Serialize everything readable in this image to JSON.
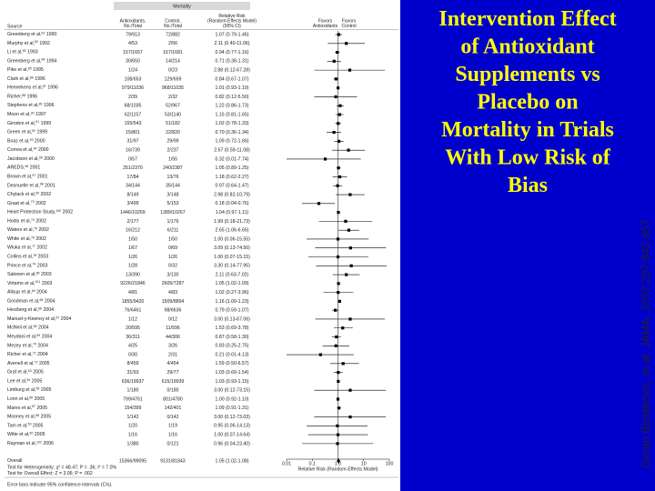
{
  "slide": {
    "title": [
      "Intervention Effect",
      "of Antioxidant",
      "Supplements vs",
      "Placebo on",
      "Mortality in Trials",
      "With Low Risk of",
      "Bias"
    ],
    "citation": "Goran Bjelakovic, et al. JAMA. 2007;297:842-857"
  },
  "forest": {
    "type": "forest",
    "panel_title": "Mortality",
    "headers": {
      "source": "Source",
      "antioxidants": [
        "Antioxidants,",
        "No./Total"
      ],
      "control": [
        "Control,",
        "No./Total"
      ],
      "rr": [
        "Relative Risk",
        "(Random-Effects Model)",
        "(95% CI)"
      ],
      "favors_left": [
        "Favors",
        "Antioxidants"
      ],
      "favors_right": [
        "Favors",
        "Control"
      ]
    },
    "rows": [
      {
        "source": "Greenberg et al,",
        "ref": "81",
        "year": "1990",
        "antioxidants": "79/913",
        "control": "72/882",
        "rr_label": "1.07 (0.79-1.46)",
        "rr": 1.07,
        "ci_low": 0.79,
        "ci_high": 1.46
      },
      {
        "source": "Murphy et al,",
        "ref": "82",
        "year": "1992",
        "antioxidants": "4/53",
        "control": "2/56",
        "rr_label": "2.11 (0.40-11.06)",
        "rr": 2.11,
        "ci_low": 0.4,
        "ci_high": 11.06
      },
      {
        "source": "Li et al,",
        "ref": "83",
        "year": "1993",
        "antioxidants": "157/1657",
        "control": "167/1681",
        "rr_label": "0.94 (0.77-1.16)",
        "rr": 0.94,
        "ci_low": 0.77,
        "ci_high": 1.16
      },
      {
        "source": "Greenberg et al,",
        "ref": "84",
        "year": "1994",
        "antioxidants": "30/650",
        "control": "14/214",
        "rr_label": "0.71 (0.38-1.31)",
        "rr": 0.71,
        "ci_low": 0.38,
        "ci_high": 1.31
      },
      {
        "source": "Pike et al,",
        "ref": "85",
        "year": "1995",
        "antioxidants": "1/24",
        "control": "0/23",
        "rr_label": "2.88 (0.12-67.28)",
        "rr": 2.88,
        "ci_low": 0.12,
        "ci_high": 67.28
      },
      {
        "source": "Clark et al,",
        "ref": "86",
        "year": "1996",
        "antioxidants": "108/653",
        "control": "129/659",
        "rr_label": "0.84 (0.67-1.07)",
        "rr": 0.84,
        "ci_low": 0.67,
        "ci_high": 1.07
      },
      {
        "source": "Hennekens et al,",
        "ref": "87",
        "year": "1996",
        "antioxidants": "979/11036",
        "control": "968/11035",
        "rr_label": "1.01 (0.93-1.10)",
        "rr": 1.01,
        "ci_low": 0.93,
        "ci_high": 1.1
      },
      {
        "source": "Richer,",
        "ref": "88",
        "year": "1996",
        "antioxidants": "2/39",
        "control": "2/32",
        "rr_label": "0.82 (0.12-5.50)",
        "rr": 0.82,
        "ci_low": 0.12,
        "ci_high": 5.5
      },
      {
        "source": "Stephens et al,",
        "ref": "89",
        "year": "1996",
        "antioxidants": "68/1035",
        "control": "52/967",
        "rr_label": "1.22 (0.86-1.73)",
        "rr": 1.22,
        "ci_low": 0.86,
        "ci_high": 1.73
      },
      {
        "source": "Moon et al,",
        "ref": "90",
        "year": "1997",
        "antioxidants": "62/1157",
        "control": "53/1140",
        "rr_label": "1.15 (0.81-1.65)",
        "rr": 1.15,
        "ci_low": 0.81,
        "ci_high": 1.65
      },
      {
        "source": "Girodon et al,",
        "ref": "91",
        "year": "1999",
        "antioxidants": "155/543",
        "control": "51/182",
        "rr_label": "1.02 (0.78-1.33)",
        "rr": 1.02,
        "ci_low": 0.78,
        "ci_high": 1.33
      },
      {
        "source": "Green et al,",
        "ref": "92",
        "year": "1999",
        "antioxidants": "15/801",
        "control": "22/820",
        "rr_label": "0.70 (0.36-1.34)",
        "rr": 0.7,
        "ci_low": 0.36,
        "ci_high": 1.34
      },
      {
        "source": "Boaz et al,",
        "ref": "93",
        "year": "2000",
        "antioxidants": "31/97",
        "control": "29/99",
        "rr_label": "1.09 (0.72-1.66)",
        "rr": 1.09,
        "ci_low": 0.72,
        "ci_high": 1.66
      },
      {
        "source": "Correa et al,",
        "ref": "94",
        "year": "2000",
        "antioxidants": "16/739",
        "control": "2/237",
        "rr_label": "2.57 (0.59-11.08)",
        "rr": 2.57,
        "ci_low": 0.59,
        "ci_high": 11.08
      },
      {
        "source": "Jacobson et al,",
        "ref": "95",
        "year": "2000",
        "antioxidants": "0/57",
        "control": "1/55",
        "rr_label": "0.32 (0.01-7.74)",
        "rr": 0.32,
        "ci_low": 0.01,
        "ci_high": 7.74
      },
      {
        "source": "AREDS,",
        "ref": "96",
        "year": "2001",
        "antioxidants": "251/2370",
        "control": "240/2387",
        "rr_label": "1.05 (0.89-1.25)",
        "rr": 1.05,
        "ci_low": 0.89,
        "ci_high": 1.25
      },
      {
        "source": "Brown et al,",
        "ref": "97",
        "year": "2001",
        "antioxidants": "17/84",
        "control": "13/76",
        "rr_label": "1.18 (0.62-2.27)",
        "rr": 1.18,
        "ci_low": 0.62,
        "ci_high": 2.27
      },
      {
        "source": "Desnuelle et al,",
        "ref": "98",
        "year": "2001",
        "antioxidants": "34/144",
        "control": "35/144",
        "rr_label": "0.97 (0.64-1.47)",
        "rr": 0.97,
        "ci_low": 0.64,
        "ci_high": 1.47
      },
      {
        "source": "Chylack et al,",
        "ref": "99",
        "year": "2002",
        "antioxidants": "8/149",
        "control": "3/148",
        "rr_label": "2.98 (0.82-10.79)",
        "rr": 2.98,
        "ci_low": 0.82,
        "ci_high": 10.79
      },
      {
        "source": "Graat et al,",
        "ref": "73",
        "year": "2002",
        "antioxidants": "3/499",
        "control": "5/153",
        "rr_label": "0.18 (0.04-0.76)",
        "rr": 0.18,
        "ci_low": 0.04,
        "ci_high": 0.76
      },
      {
        "source": "Heart Protection Study,",
        "ref": "100",
        "year": "2002",
        "antioxidants": "1446/10269",
        "control": "1389/10267",
        "rr_label": "1.04 (0.97-1.11)",
        "rr": 1.04,
        "ci_low": 0.97,
        "ci_high": 1.11
      },
      {
        "source": "Hodis et al,",
        "ref": "74",
        "year": "2002",
        "antioxidants": "2/177",
        "control": "1/176",
        "rr_label": "1.99 (0.18-21.73)",
        "rr": 1.99,
        "ci_low": 0.18,
        "ci_high": 21.73
      },
      {
        "source": "Waters et al,",
        "ref": "75",
        "year": "2002",
        "antioxidants": "16/212",
        "control": "6/211",
        "rr_label": "2.65 (1.06-6.65)",
        "rr": 2.65,
        "ci_low": 1.06,
        "ci_high": 6.65
      },
      {
        "source": "White et al,",
        "ref": "76",
        "year": "2002",
        "antioxidants": "1/50",
        "control": "1/50",
        "rr_label": "1.00 (0.06-15.55)",
        "rr": 1.0,
        "ci_low": 0.06,
        "ci_high": 15.55
      },
      {
        "source": "Wluka et al,",
        "ref": "77",
        "year": "2002",
        "antioxidants": "1/67",
        "control": "0/69",
        "rr_label": "3.09 (0.13-74.50)",
        "rr": 3.09,
        "ci_low": 0.13,
        "ci_high": 74.5
      },
      {
        "source": "Collins et al,",
        "ref": "78",
        "year": "2003",
        "antioxidants": "1/26",
        "control": "1/26",
        "rr_label": "1.00 (0.07-15.15)",
        "rr": 1.0,
        "ci_low": 0.07,
        "ci_high": 15.15
      },
      {
        "source": "Prince et al,",
        "ref": "79",
        "year": "2003",
        "antioxidants": "1/28",
        "control": "0/32",
        "rr_label": "3.30 (0.14-77.95)",
        "rr": 3.3,
        "ci_low": 0.14,
        "ci_high": 77.95
      },
      {
        "source": "Salonen et al,",
        "ref": "80",
        "year": "2003",
        "antioxidants": "13/390",
        "control": "3/130",
        "rr_label": "2.11 (0.63-7.02)",
        "rr": 2.11,
        "ci_low": 0.63,
        "ci_high": 7.02
      },
      {
        "source": "Virtamo et al,",
        "ref": "101",
        "year": "2003",
        "antioxidants": "9226/21846",
        "control": "2605/7287",
        "rr_label": "1.05 (1.02-1.09)",
        "rr": 1.05,
        "ci_low": 1.02,
        "ci_high": 1.09
      },
      {
        "source": "Allsup et al,",
        "ref": "64",
        "year": "2004",
        "antioxidants": "4/81",
        "control": "4/83",
        "rr_label": "1.02 (0.27-3.96)",
        "rr": 1.02,
        "ci_low": 0.27,
        "ci_high": 3.96
      },
      {
        "source": "Goodman et al,",
        "ref": "65",
        "year": "2004",
        "antioxidants": "1855/9420",
        "control": "1509/8894",
        "rr_label": "1.16 (1.09-1.23)",
        "rr": 1.16,
        "ci_low": 1.09,
        "ci_high": 1.23
      },
      {
        "source": "Herzberg et al,",
        "ref": "66",
        "year": "2004",
        "antioxidants": "76/6461",
        "control": "98/6636",
        "rr_label": "0.79 (0.59-1.07)",
        "rr": 0.79,
        "ci_low": 0.59,
        "ci_high": 1.07
      },
      {
        "source": "Manuel-y-Keenoy et al,",
        "ref": "67",
        "year": "2004",
        "antioxidants": "1/12",
        "control": "0/12",
        "rr_label": "3.00 (0.13-67.06)",
        "rr": 3.0,
        "ci_low": 0.13,
        "ci_high": 67.06
      },
      {
        "source": "McNeil et al,",
        "ref": "68",
        "year": "2004",
        "antioxidants": "20/595",
        "control": "11/596",
        "rr_label": "1.53 (0.69-3.78)",
        "rr": 1.53,
        "ci_low": 0.69,
        "ci_high": 3.78
      },
      {
        "source": "Meydani et al,",
        "ref": "69",
        "year": "2004",
        "antioxidants": "36/311",
        "control": "44/306",
        "rr_label": "0.87 (0.58-1.30)",
        "rr": 0.87,
        "ci_low": 0.58,
        "ci_high": 1.3
      },
      {
        "source": "Mezey et al,",
        "ref": "70",
        "year": "2004",
        "antioxidants": "4/25",
        "control": "3/26",
        "rr_label": "0.83 (0.25-2.75)",
        "rr": 0.83,
        "ci_low": 0.25,
        "ci_high": 2.75
      },
      {
        "source": "Richer et al,",
        "ref": "71",
        "year": "2004",
        "antioxidants": "0/30",
        "control": "2/31",
        "rr_label": "0.21 (0.01-4.13)",
        "rr": 0.21,
        "ci_low": 0.01,
        "ci_high": 4.13
      },
      {
        "source": "Avenell et al,",
        "ref": "72",
        "year": "2005",
        "antioxidants": "8/459",
        "control": "4/454",
        "rr_label": "1.59 (0.50-6.57)",
        "rr": 1.59,
        "ci_low": 0.5,
        "ci_high": 6.57
      },
      {
        "source": "Graf et al,",
        "ref": "63",
        "year": "2005",
        "antioxidants": "31/93",
        "control": "29/77",
        "rr_label": "1.03 (0.69-1.54)",
        "rr": 1.03,
        "ci_low": 0.69,
        "ci_high": 1.54
      },
      {
        "source": "Lee et al,",
        "ref": "54",
        "year": "2005",
        "antioxidants": "636/19937",
        "control": "615/19939",
        "rr_label": "1.03 (0.93-1.15)",
        "rr": 1.03,
        "ci_low": 0.93,
        "ci_high": 1.15
      },
      {
        "source": "Limburg et al,",
        "ref": "55",
        "year": "2005",
        "antioxidants": "1/180",
        "control": "0/180",
        "rr_label": "3.00 (0.12-73.15)",
        "rr": 3.0,
        "ci_low": 0.12,
        "ci_high": 73.15
      },
      {
        "source": "Lonn et al,",
        "ref": "56",
        "year": "2005",
        "antioxidants": "799/4761",
        "control": "801/4780",
        "rr_label": "1.00 (0.92-1.10)",
        "rr": 1.0,
        "ci_low": 0.92,
        "ci_high": 1.1
      },
      {
        "source": "Mares et al,",
        "ref": "57",
        "year": "2005",
        "antioxidants": "154/399",
        "control": "142/401",
        "rr_label": "1.09 (0.91-1.31)",
        "rr": 1.09,
        "ci_low": 0.91,
        "ci_high": 1.31
      },
      {
        "source": "Mooney et al,",
        "ref": "58",
        "year": "2005",
        "antioxidants": "1/142",
        "control": "0/142",
        "rr_label": "3.00 (0.12-73.03)",
        "rr": 3.0,
        "ci_low": 0.12,
        "ci_high": 73.03
      },
      {
        "source": "Tam et al,",
        "ref": "59",
        "year": "2005",
        "antioxidants": "1/20",
        "control": "1/19",
        "rr_label": "0.95 (0.06-14.13)",
        "rr": 0.95,
        "ci_low": 0.06,
        "ci_high": 14.13
      },
      {
        "source": "Witte et al,",
        "ref": "60",
        "year": "2005",
        "antioxidants": "1/16",
        "control": "1/16",
        "rr_label": "1.00 (0.07-14.64)",
        "rr": 1.0,
        "ci_low": 0.07,
        "ci_high": 14.64
      },
      {
        "source": "Rayman et al,",
        "ref": "102",
        "year": "2006",
        "antioxidants": "1/380",
        "control": "0/121",
        "rr_label": "0.96 (0.04-23.40)",
        "rr": 0.96,
        "ci_low": 0.04,
        "ci_high": 23.4
      }
    ],
    "overall": {
      "source": "Overall",
      "antioxidants": "15366/99095",
      "control": "9131/81843",
      "rr_label": "1.05 (1.02-1.08)",
      "rr": 1.05,
      "ci_low": 1.02,
      "ci_high": 1.08
    },
    "heterogeneity": "Test for Heterogeneity: χ² = 48.47; P = .36; I² = 7.0%",
    "overall_effect": "Test for Overall Effect: Z = 3.06; P = .002",
    "footnote": "Error bars indicate 95% confidence intervals (CIs).",
    "xlabel": "Relative Risk (Random-Effects Model)",
    "xscale": "log",
    "xlim": [
      0.01,
      100
    ],
    "xticks": [
      0.01,
      0.1,
      {
        "value": 1,
        "label": "1.0"
      },
      10,
      100
    ]
  }
}
